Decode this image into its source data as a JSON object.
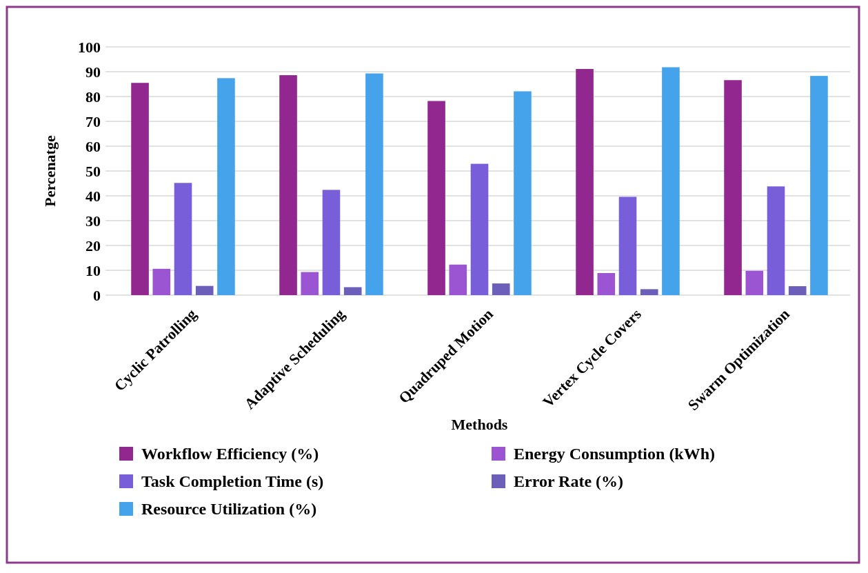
{
  "chart_data": {
    "type": "bar",
    "xlabel": "Methods",
    "ylabel": "Percenatge",
    "categories": [
      "Cyclic Patrolling",
      "Adaptive Scheduling",
      "Quadruped Motion",
      "Vertex Cycle Covers",
      "Swarm Optimization"
    ],
    "series": [
      {
        "name": "Workflow Efficiency (%)",
        "color": "#92278f",
        "values": [
          85.5,
          88.6,
          78.2,
          91.1,
          86.6
        ]
      },
      {
        "name": "Energy Consumption (kWh)",
        "color": "#9b55d2",
        "values": [
          10.6,
          9.3,
          12.3,
          8.9,
          9.8
        ]
      },
      {
        "name": "Task Completion Time (s)",
        "color": "#785ed9",
        "values": [
          45.2,
          42.4,
          52.9,
          39.6,
          43.8
        ]
      },
      {
        "name": "Error Rate (%)",
        "color": "#6b5fb9",
        "values": [
          3.7,
          3.2,
          4.7,
          2.4,
          3.6
        ]
      },
      {
        "name": "Resource Utilization (%)",
        "color": "#44a3ea",
        "values": [
          87.4,
          89.3,
          82.1,
          91.8,
          88.3
        ]
      }
    ],
    "ylim": [
      0,
      100
    ],
    "yticks": [
      0,
      10,
      20,
      30,
      40,
      50,
      60,
      70,
      80,
      90,
      100
    ],
    "grid": "y",
    "legend": "bottom"
  }
}
